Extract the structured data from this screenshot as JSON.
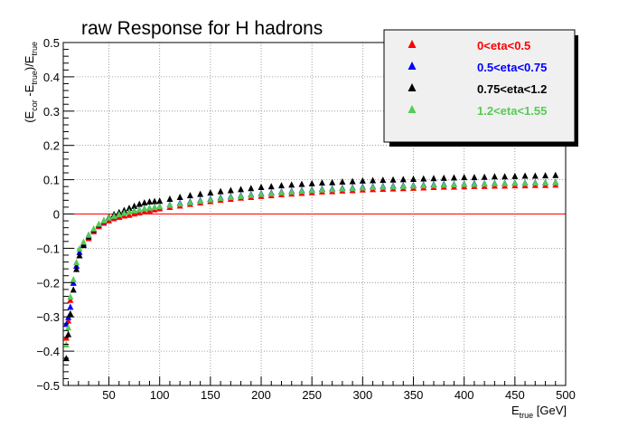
{
  "chart_data": {
    "type": "scatter",
    "title": "raw Response for H hadrons",
    "xlabel": {
      "main": "E",
      "sub": "true",
      "unit": " [GeV]"
    },
    "ylabel": {
      "p1": "(E",
      "s1": "cor",
      "p2": " -E",
      "s2": "true",
      "p3": ")/E",
      "s3": "true"
    },
    "xlim": [
      5,
      500
    ],
    "ylim": [
      -0.5,
      0.5
    ],
    "xticks": [
      50,
      100,
      150,
      200,
      250,
      300,
      350,
      400,
      450,
      500
    ],
    "xtick_labels": [
      "50",
      "100",
      "150",
      "200",
      "250",
      "300",
      "350",
      "400",
      "450",
      "500"
    ],
    "yticks": [
      -0.5,
      -0.4,
      -0.3,
      -0.2,
      -0.1,
      0,
      0.1,
      0.2,
      0.3,
      0.4,
      0.5
    ],
    "ytick_labels": [
      "−0.5",
      "−0.4",
      "−0.3",
      "−0.2",
      "−0.1",
      "0",
      "0.1",
      "0.2",
      "0.3",
      "0.4",
      "0.5"
    ],
    "grid": true,
    "legend_position": "top-right",
    "reference_line": {
      "y": 0,
      "color": "#ff0000"
    },
    "series": [
      {
        "name": "0<eta<0.5",
        "color": "#ff0000",
        "x": [
          8,
          10,
          12,
          15,
          18,
          21,
          25,
          30,
          35,
          40,
          45,
          50,
          55,
          60,
          65,
          70,
          75,
          80,
          85,
          90,
          95,
          100,
          110,
          120,
          130,
          140,
          150,
          160,
          170,
          180,
          190,
          200,
          210,
          220,
          230,
          240,
          250,
          260,
          270,
          280,
          290,
          300,
          310,
          320,
          330,
          340,
          350,
          360,
          370,
          380,
          390,
          400,
          410,
          420,
          430,
          440,
          450,
          460,
          470,
          480,
          490
        ],
        "y": [
          -0.36,
          -0.31,
          -0.25,
          -0.2,
          -0.15,
          -0.12,
          -0.09,
          -0.07,
          -0.05,
          -0.035,
          -0.025,
          -0.018,
          -0.012,
          -0.008,
          -0.004,
          -0.002,
          0.002,
          0.005,
          0.008,
          0.011,
          0.014,
          0.017,
          0.021,
          0.025,
          0.03,
          0.034,
          0.038,
          0.042,
          0.045,
          0.048,
          0.05,
          0.053,
          0.055,
          0.058,
          0.06,
          0.062,
          0.064,
          0.066,
          0.067,
          0.069,
          0.07,
          0.072,
          0.073,
          0.074,
          0.075,
          0.076,
          0.077,
          0.078,
          0.079,
          0.08,
          0.08,
          0.081,
          0.082,
          0.082,
          0.083,
          0.083,
          0.084,
          0.084,
          0.085,
          0.085,
          0.086
        ]
      },
      {
        "name": "0.5<eta<0.75",
        "color": "#0000ff",
        "x": [
          8,
          10,
          12,
          15,
          18,
          21,
          25,
          30,
          35,
          40,
          45,
          50,
          55,
          60,
          65,
          70,
          75,
          80,
          85,
          90,
          95,
          100,
          110,
          120,
          130,
          140,
          150,
          160,
          170,
          180,
          190,
          200,
          210,
          220,
          230,
          240,
          250,
          260,
          270,
          280,
          290,
          300,
          310,
          320,
          330,
          340,
          350,
          360,
          370,
          380,
          390,
          400,
          410,
          420,
          430,
          440,
          450,
          460,
          470,
          480,
          490
        ],
        "y": [
          -0.32,
          -0.3,
          -0.27,
          -0.2,
          -0.15,
          -0.11,
          -0.085,
          -0.06,
          -0.045,
          -0.03,
          -0.02,
          -0.01,
          -0.005,
          0.0,
          0.004,
          0.008,
          0.011,
          0.014,
          0.017,
          0.019,
          0.021,
          0.023,
          0.028,
          0.033,
          0.037,
          0.041,
          0.045,
          0.049,
          0.052,
          0.055,
          0.058,
          0.061,
          0.063,
          0.066,
          0.068,
          0.07,
          0.072,
          0.074,
          0.075,
          0.077,
          0.078,
          0.08,
          0.081,
          0.082,
          0.083,
          0.084,
          0.085,
          0.086,
          0.087,
          0.088,
          0.088,
          0.089,
          0.09,
          0.09,
          0.091,
          0.091,
          0.092,
          0.092,
          0.093,
          0.093,
          0.094
        ]
      },
      {
        "name": "0.75<eta<1.2",
        "color": "#000000",
        "x": [
          8,
          10,
          12,
          15,
          18,
          21,
          25,
          30,
          35,
          40,
          45,
          50,
          55,
          60,
          65,
          70,
          75,
          80,
          85,
          90,
          95,
          100,
          110,
          120,
          130,
          140,
          150,
          160,
          170,
          180,
          190,
          200,
          210,
          220,
          230,
          240,
          250,
          260,
          270,
          280,
          290,
          300,
          310,
          320,
          330,
          340,
          350,
          360,
          370,
          380,
          390,
          400,
          410,
          420,
          430,
          440,
          450,
          460,
          470,
          480,
          490
        ],
        "y": [
          -0.42,
          -0.35,
          -0.29,
          -0.22,
          -0.16,
          -0.12,
          -0.09,
          -0.065,
          -0.045,
          -0.03,
          -0.018,
          -0.008,
          0.0,
          0.006,
          0.012,
          0.018,
          0.024,
          0.03,
          0.034,
          0.037,
          0.038,
          0.039,
          0.045,
          0.05,
          0.055,
          0.059,
          0.063,
          0.067,
          0.07,
          0.073,
          0.076,
          0.079,
          0.081,
          0.084,
          0.086,
          0.088,
          0.09,
          0.092,
          0.093,
          0.095,
          0.096,
          0.098,
          0.099,
          0.1,
          0.101,
          0.102,
          0.103,
          0.104,
          0.105,
          0.106,
          0.107,
          0.108,
          0.108,
          0.109,
          0.11,
          0.11,
          0.111,
          0.112,
          0.112,
          0.113,
          0.114
        ]
      },
      {
        "name": "1.2<eta<1.55",
        "color": "#55cc55",
        "x": [
          8,
          10,
          12,
          15,
          18,
          21,
          25,
          30,
          35,
          40,
          45,
          50,
          55,
          60,
          65,
          70,
          75,
          80,
          85,
          90,
          95,
          100,
          110,
          120,
          130,
          140,
          150,
          160,
          170,
          180,
          190,
          200,
          210,
          220,
          230,
          240,
          250,
          260,
          270,
          280,
          290,
          300,
          310,
          320,
          330,
          340,
          350,
          360,
          370,
          380,
          390,
          400,
          410,
          420,
          430,
          440,
          450,
          460,
          470,
          480,
          490
        ],
        "y": [
          -0.38,
          -0.33,
          -0.24,
          -0.19,
          -0.14,
          -0.1,
          -0.08,
          -0.06,
          -0.042,
          -0.028,
          -0.018,
          -0.01,
          -0.005,
          0.0,
          0.004,
          0.008,
          0.011,
          0.014,
          0.017,
          0.019,
          0.021,
          0.023,
          0.027,
          0.031,
          0.035,
          0.039,
          0.043,
          0.047,
          0.05,
          0.053,
          0.056,
          0.059,
          0.061,
          0.064,
          0.066,
          0.068,
          0.07,
          0.072,
          0.073,
          0.075,
          0.076,
          0.078,
          0.079,
          0.08,
          0.081,
          0.082,
          0.083,
          0.084,
          0.085,
          0.086,
          0.087,
          0.088,
          0.088,
          0.089,
          0.09,
          0.09,
          0.091,
          0.091,
          0.092,
          0.092,
          0.093
        ]
      }
    ]
  }
}
